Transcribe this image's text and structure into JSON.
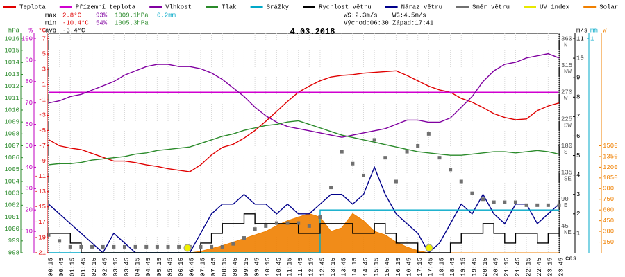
{
  "chart_data": {
    "type": "line",
    "title": "4.03.2018",
    "xlabel": "čas",
    "categories": [
      "00:15",
      "00:45",
      "01:15",
      "01:45",
      "02:15",
      "02:45",
      "03:15",
      "03:45",
      "04:15",
      "04:45",
      "05:15",
      "05:45",
      "06:15",
      "06:45",
      "07:15",
      "07:45",
      "08:15",
      "08:45",
      "09:15",
      "09:45",
      "10:15",
      "10:45",
      "11:15",
      "11:45",
      "12:15",
      "12:45",
      "13:15",
      "13:45",
      "14:15",
      "14:45",
      "15:15",
      "15:45",
      "16:15",
      "16:45",
      "17:15",
      "17:45",
      "18:15",
      "18:45",
      "19:15",
      "19:45",
      "20:15",
      "20:45",
      "21:15",
      "21:45",
      "22:15",
      "22:45",
      "23:15",
      "23:45"
    ],
    "stats": {
      "max": {
        "label": "max",
        "temp": "2.8°C",
        "hum": "93%",
        "press": "1009.1hPa",
        "rain": "0.2mm"
      },
      "min": {
        "label": "min",
        "temp": "-10.4°C",
        "hum": "54%",
        "press": "1005.3hPa"
      },
      "avg": {
        "label": "avg",
        "temp": "-3.4°C"
      },
      "ws": "WS:2.3m/s",
      "wg": "WG:4.5m/s",
      "sunrise": "Východ:06:30",
      "sunset": "Západ:17:41"
    },
    "axes": {
      "pressure": {
        "unit": "hPa",
        "side": "left",
        "color": "#2a8a2a",
        "ylim": [
          998,
          1016
        ],
        "yticks": [
          998,
          999,
          1000,
          1001,
          1002,
          1003,
          1004,
          1005,
          1006,
          1007,
          1008,
          1009,
          1010,
          1011,
          1012,
          1013,
          1014,
          1015,
          1016
        ]
      },
      "humidity": {
        "unit": "%",
        "side": "left",
        "color": "#c000c0",
        "ylim": [
          0,
          100
        ],
        "yticks": [
          10,
          20,
          30,
          40,
          50,
          60,
          70,
          80,
          90,
          100
        ]
      },
      "temperature": {
        "unit": "°C",
        "side": "left",
        "color": "#e00000",
        "ylim": [
          -21,
          7
        ],
        "yticks": [
          -21,
          -19,
          -17,
          -15,
          -13,
          -11,
          -9,
          -7,
          -5,
          -3,
          -1,
          1,
          3,
          5,
          7
        ]
      },
      "direction": {
        "side": "right",
        "color": "#555555",
        "ylim": [
          0,
          360
        ],
        "yticks": [
          45,
          90,
          135,
          180,
          225,
          270,
          315,
          360
        ],
        "compass": [
          "NE",
          "E",
          "SE",
          "S",
          "SW",
          "W",
          "NW",
          "N"
        ]
      },
      "wind": {
        "unit": "m/s",
        "side": "right",
        "color": "#000000",
        "ylim": [
          0,
          11
        ],
        "yticks": [
          1,
          2,
          3,
          4,
          5,
          6,
          7,
          8,
          9,
          10,
          11
        ]
      },
      "rain": {
        "unit": "mm",
        "side": "right",
        "color": "#00a8c8",
        "ylim": [
          0,
          1
        ],
        "yticks": [
          1
        ]
      },
      "solar": {
        "unit": "W",
        "side": "right",
        "color": "#f08000",
        "ylim": [
          0,
          3000
        ],
        "yticks": [
          150,
          300,
          450,
          600,
          750,
          900,
          1050,
          1200,
          1350,
          1500
        ]
      }
    },
    "series": [
      {
        "name": "Teplota",
        "color": "#e00000",
        "axis": "temperature",
        "style": "line",
        "values": [
          -6.2,
          -7,
          -7.3,
          -7.5,
          -8,
          -8.5,
          -9,
          -9,
          -9.2,
          -9.5,
          -9.7,
          -10,
          -10.2,
          -10.4,
          -9.5,
          -8.2,
          -7.2,
          -6.8,
          -6,
          -5,
          -3.8,
          -2.5,
          -1.2,
          0,
          0.8,
          1.5,
          2,
          2.2,
          2.3,
          2.5,
          2.6,
          2.7,
          2.8,
          2.2,
          1.5,
          0.8,
          0.3,
          0,
          -0.8,
          -1.3,
          -2,
          -2.8,
          -3.3,
          -3.6,
          -3.5,
          -2.4,
          -1.8,
          -1.4
        ]
      },
      {
        "name": "Přízemní teplota",
        "color": "#d000d0",
        "axis": "temperature",
        "style": "line",
        "values": [
          0,
          0,
          0,
          0,
          0,
          0,
          0,
          0,
          0,
          0,
          0,
          0,
          0,
          0,
          0,
          0,
          0,
          0,
          0,
          0,
          0,
          0,
          0,
          0,
          0,
          0,
          0,
          0,
          0,
          0,
          0,
          0,
          0,
          0,
          0,
          0,
          0,
          0,
          0,
          0,
          0,
          0,
          0,
          0,
          0,
          0,
          0,
          0
        ]
      },
      {
        "name": "Vlhkost",
        "color": "#8000a0",
        "axis": "humidity",
        "style": "line",
        "values": [
          70,
          71,
          73,
          74,
          76,
          78,
          80,
          83,
          85,
          87,
          88,
          88,
          87,
          87,
          86,
          84,
          81,
          77,
          73,
          68,
          64,
          61,
          59,
          58,
          57,
          56,
          55,
          54,
          55,
          56,
          57,
          58,
          60,
          62,
          62,
          61,
          61,
          63,
          68,
          73,
          80,
          85,
          88,
          89,
          91,
          92,
          93,
          91
        ]
      },
      {
        "name": "Tlak",
        "color": "#2a8a2a",
        "axis": "pressure",
        "style": "line",
        "values": [
          1005.4,
          1005.5,
          1005.5,
          1005.6,
          1005.8,
          1005.9,
          1006.0,
          1006.1,
          1006.3,
          1006.4,
          1006.6,
          1006.7,
          1006.8,
          1006.9,
          1007.2,
          1007.5,
          1007.8,
          1008.0,
          1008.3,
          1008.5,
          1008.7,
          1008.8,
          1009.0,
          1009.1,
          1008.8,
          1008.5,
          1008.2,
          1007.9,
          1007.7,
          1007.5,
          1007.3,
          1007.1,
          1006.9,
          1006.7,
          1006.5,
          1006.4,
          1006.3,
          1006.2,
          1006.2,
          1006.3,
          1006.4,
          1006.5,
          1006.5,
          1006.4,
          1006.5,
          1006.6,
          1006.5,
          1006.3
        ]
      },
      {
        "name": "Srážky",
        "color": "#00a8c8",
        "axis": "rain",
        "style": "step",
        "values": [
          0,
          0,
          0,
          0,
          0,
          0,
          0,
          0,
          0,
          0,
          0,
          0,
          0,
          0,
          0,
          0,
          0,
          0,
          0,
          0,
          0,
          0,
          0,
          0,
          0,
          0.2,
          0.2,
          0.2,
          0.2,
          0.2,
          0.2,
          0.2,
          0.2,
          0.2,
          0.2,
          0.2,
          0.2,
          0.2,
          0.2,
          0.2,
          0.2,
          0.2,
          0.2,
          0.2,
          0.2,
          0.2,
          0.2,
          0.2
        ]
      },
      {
        "name": "Rychlost větru",
        "color": "#000000",
        "axis": "wind",
        "style": "step",
        "values": [
          1,
          1,
          0.5,
          0,
          0,
          0,
          0,
          0,
          0,
          0,
          0,
          0,
          0,
          0,
          0.5,
          1,
          1.5,
          1.5,
          2,
          1.5,
          1.5,
          1.5,
          1.5,
          1,
          1,
          1.5,
          1.5,
          1.5,
          1,
          1,
          1.5,
          1,
          0.5,
          0.5,
          0,
          0,
          0,
          0.5,
          1,
          1,
          1.5,
          1,
          0.5,
          1,
          1,
          0.5,
          1,
          1
        ]
      },
      {
        "name": "Náraz větru",
        "color": "#00008b",
        "axis": "wind",
        "style": "line",
        "values": [
          2.5,
          2,
          1.5,
          1,
          0.5,
          0,
          1,
          0.5,
          0,
          0,
          0,
          0,
          0,
          0,
          1,
          2,
          2.5,
          2.5,
          3,
          2.5,
          2.5,
          2,
          2.5,
          2,
          2,
          2.5,
          3,
          3,
          2.5,
          3,
          4.4,
          3,
          2,
          1.5,
          1,
          0,
          0.5,
          1.5,
          2.5,
          2,
          3,
          2,
          1.5,
          2.5,
          2.5,
          1.5,
          2,
          2.5
        ]
      },
      {
        "name": "Směr větru",
        "color": "#707070",
        "axis": "direction",
        "style": "dots",
        "values": [
          30,
          20,
          10,
          10,
          10,
          10,
          10,
          10,
          10,
          10,
          10,
          10,
          10,
          10,
          10,
          10,
          10,
          15,
          25,
          40,
          45,
          50,
          50,
          50,
          45,
          60,
          110,
          170,
          150,
          130,
          190,
          160,
          120,
          170,
          180,
          200,
          160,
          140,
          120,
          100,
          90,
          85,
          85,
          85,
          80,
          80,
          80,
          80
        ]
      },
      {
        "name": "UV index",
        "color": "#e8e800",
        "style": "line",
        "values": [
          null,
          null,
          null,
          null,
          null,
          null,
          null,
          null,
          null,
          null,
          null,
          null,
          null,
          null,
          null,
          null,
          null,
          null,
          null,
          null,
          null,
          null,
          null,
          null,
          null,
          null,
          null,
          null,
          null,
          null,
          null,
          null,
          null,
          null,
          null,
          null,
          null,
          null,
          null,
          null,
          null,
          null,
          null,
          null,
          null,
          null,
          null,
          null
        ]
      },
      {
        "name": "Solar",
        "color": "#f08000",
        "axis": "solar",
        "style": "area",
        "values": [
          0,
          0,
          0,
          0,
          0,
          0,
          0,
          0,
          0,
          0,
          0,
          0,
          0,
          0,
          20,
          60,
          100,
          150,
          200,
          250,
          300,
          380,
          450,
          500,
          550,
          500,
          300,
          350,
          550,
          450,
          300,
          250,
          150,
          80,
          30,
          0,
          0,
          0,
          0,
          0,
          0,
          0,
          0,
          0,
          0,
          0,
          0,
          0
        ]
      }
    ]
  }
}
